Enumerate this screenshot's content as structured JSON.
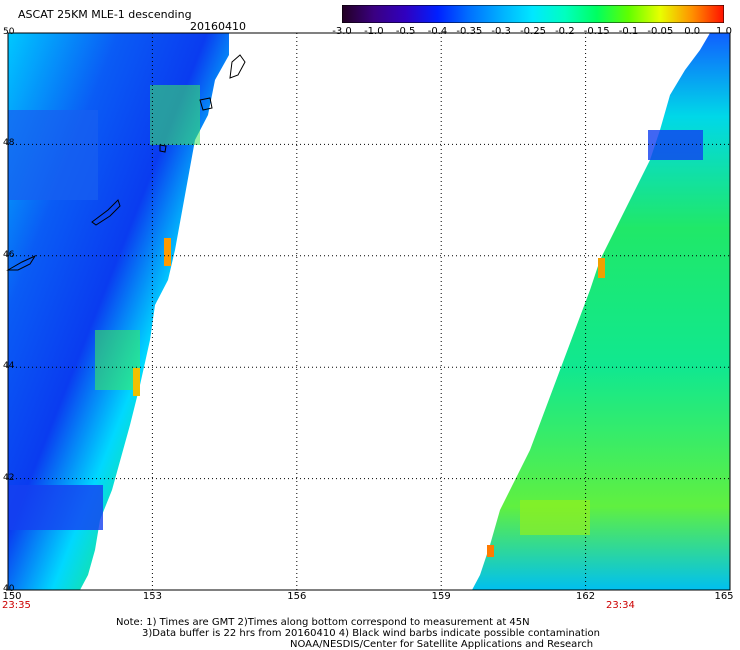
{
  "header": {
    "title": "ASCAT 25KM MLE-1 descending",
    "date": "20160410"
  },
  "colorbar": {
    "labels": [
      "-3.0",
      "-1.0",
      "-0.5",
      "-0.4",
      "-0.35",
      "-0.3",
      "-0.25",
      "-0.2",
      "-0.15",
      "-0.1",
      "-0.05",
      "0.0",
      "1.0"
    ],
    "colors": [
      "#220022",
      "#3a0080",
      "#3000c0",
      "#0020ff",
      "#0070ff",
      "#00b0ff",
      "#00e8ff",
      "#00ffc0",
      "#00ff60",
      "#60ff00",
      "#e8ff00",
      "#ff9000",
      "#ff1000"
    ]
  },
  "map": {
    "lat_labels": [
      "50",
      "48",
      "46",
      "44",
      "42",
      "40"
    ],
    "lon_labels": [
      "150",
      "153",
      "156",
      "159",
      "162",
      "165"
    ],
    "times": {
      "left": "23:35",
      "right": "23:34"
    }
  },
  "footer": {
    "line1": "Note: 1) Times are GMT 2)Times along bottom correspond to measurement at 45N",
    "line2": "3)Data buffer is 22 hrs from 20160410 4) Black wind barbs indicate possible contamination",
    "line3": "NOAA/NESDIS/Center for Satellite Applications and Research"
  }
}
